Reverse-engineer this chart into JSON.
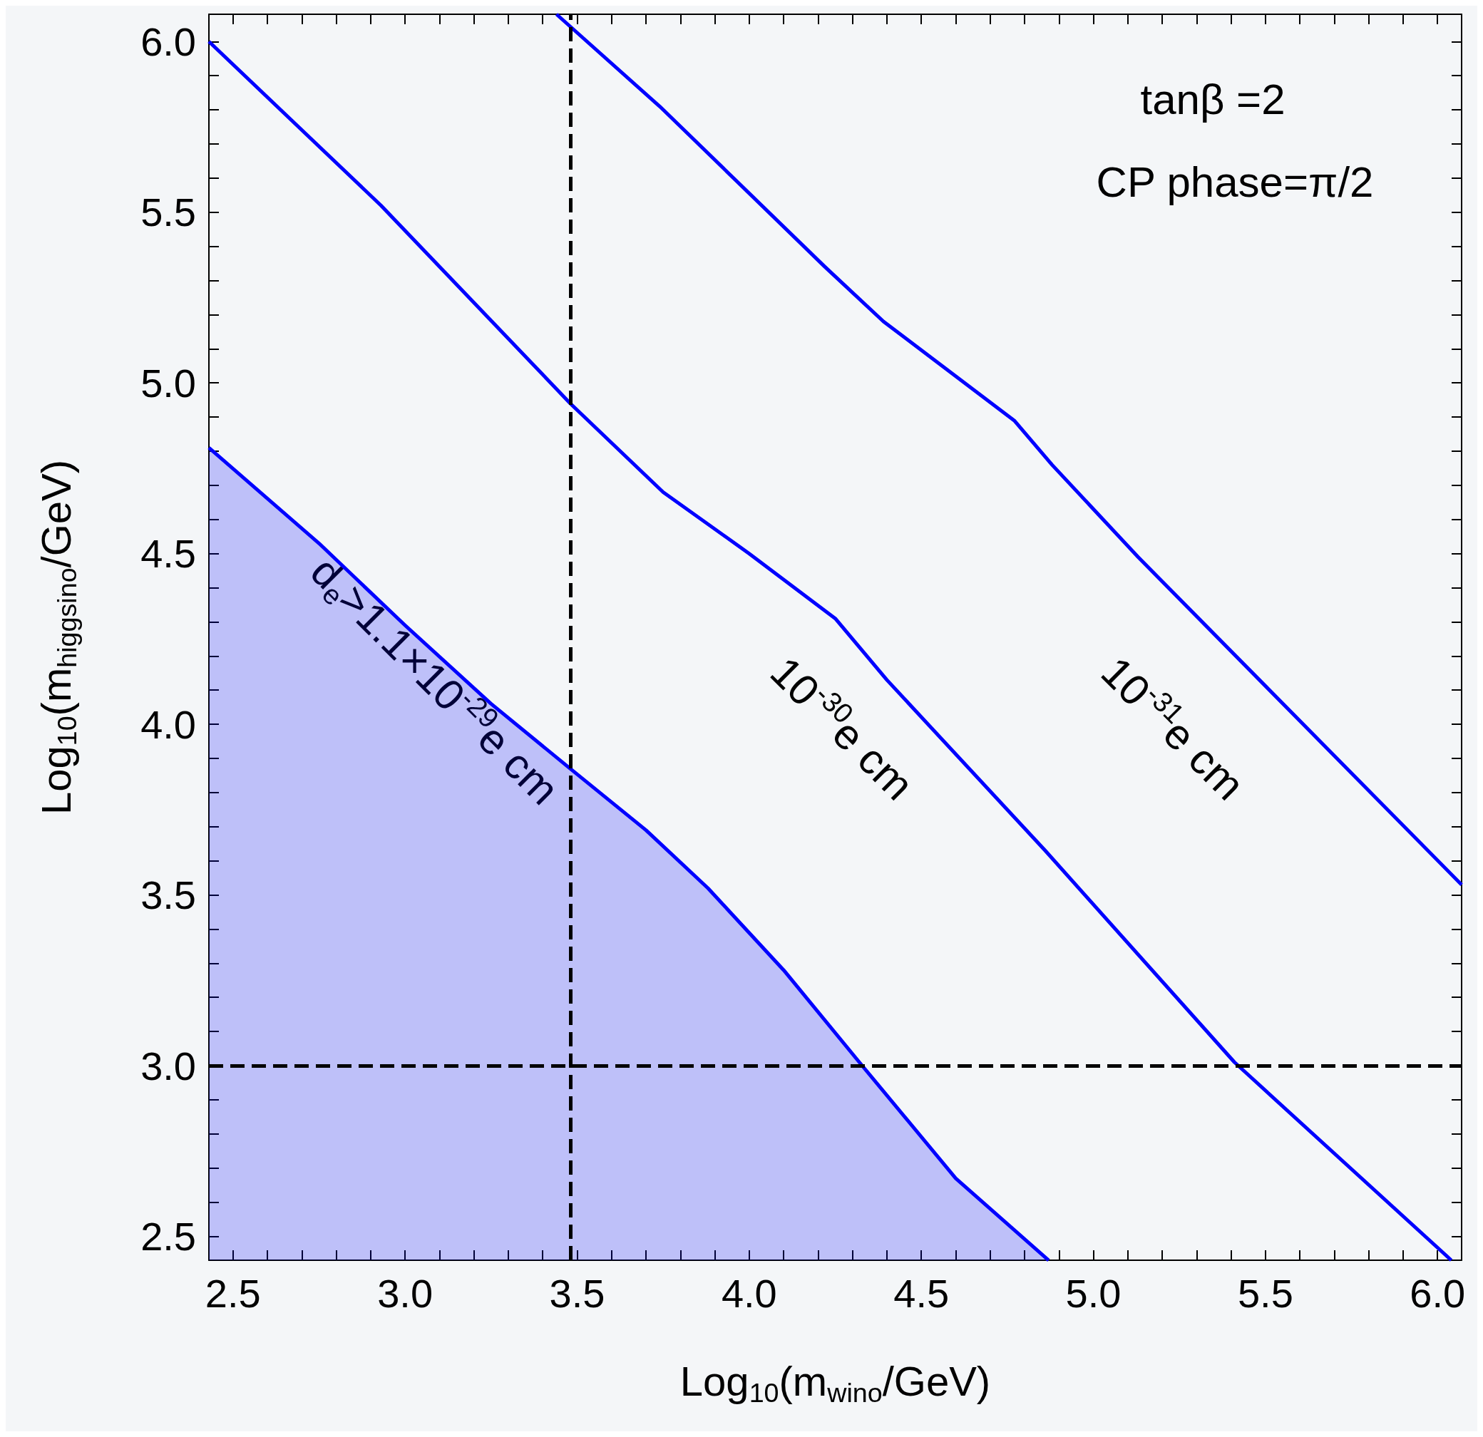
{
  "chart_data": {
    "type": "line",
    "xlabel": "Log$_{10}$(m$_{wino}$/GeV)",
    "ylabel": "Log$_{10}$(m$_{higgsino}$/GeV)",
    "xlim": [
      2.43,
      6.07
    ],
    "ylim": [
      2.43,
      6.08
    ],
    "xticks": [
      {
        "value": 2.5,
        "label": "2.5"
      },
      {
        "value": 2.6,
        "label": null
      },
      {
        "value": 2.7,
        "label": null
      },
      {
        "value": 2.8,
        "label": null
      },
      {
        "value": 2.9,
        "label": null
      },
      {
        "value": 3,
        "label": "3.0"
      },
      {
        "value": 3.1,
        "label": null
      },
      {
        "value": 3.2,
        "label": null
      },
      {
        "value": 3.3,
        "label": null
      },
      {
        "value": 3.4,
        "label": null
      },
      {
        "value": 3.5,
        "label": "3.5"
      },
      {
        "value": 3.6,
        "label": null
      },
      {
        "value": 3.7,
        "label": null
      },
      {
        "value": 3.8,
        "label": null
      },
      {
        "value": 3.9,
        "label": null
      },
      {
        "value": 4,
        "label": "4.0"
      },
      {
        "value": 4.1,
        "label": null
      },
      {
        "value": 4.2,
        "label": null
      },
      {
        "value": 4.3,
        "label": null
      },
      {
        "value": 4.4,
        "label": null
      },
      {
        "value": 4.5,
        "label": "4.5"
      },
      {
        "value": 4.6,
        "label": null
      },
      {
        "value": 4.7,
        "label": null
      },
      {
        "value": 4.8,
        "label": null
      },
      {
        "value": 4.9,
        "label": null
      },
      {
        "value": 5,
        "label": "5.0"
      },
      {
        "value": 5.1,
        "label": null
      },
      {
        "value": 5.2,
        "label": null
      },
      {
        "value": 5.3,
        "label": null
      },
      {
        "value": 5.4,
        "label": null
      },
      {
        "value": 5.5,
        "label": "5.5"
      },
      {
        "value": 5.6,
        "label": null
      },
      {
        "value": 5.7,
        "label": null
      },
      {
        "value": 5.8,
        "label": null
      },
      {
        "value": 5.9,
        "label": null
      },
      {
        "value": 6,
        "label": "6.0"
      }
    ],
    "yticks": [
      {
        "value": 2.5,
        "label": "2.5"
      },
      {
        "value": 2.6,
        "label": null
      },
      {
        "value": 2.7,
        "label": null
      },
      {
        "value": 2.8,
        "label": null
      },
      {
        "value": 2.9,
        "label": null
      },
      {
        "value": 3,
        "label": "3.0"
      },
      {
        "value": 3.1,
        "label": null
      },
      {
        "value": 3.2,
        "label": null
      },
      {
        "value": 3.3,
        "label": null
      },
      {
        "value": 3.4,
        "label": null
      },
      {
        "value": 3.5,
        "label": "3.5"
      },
      {
        "value": 3.6,
        "label": null
      },
      {
        "value": 3.7,
        "label": null
      },
      {
        "value": 3.8,
        "label": null
      },
      {
        "value": 3.9,
        "label": null
      },
      {
        "value": 4,
        "label": "4.0"
      },
      {
        "value": 4.1,
        "label": null
      },
      {
        "value": 4.2,
        "label": null
      },
      {
        "value": 4.3,
        "label": null
      },
      {
        "value": 4.4,
        "label": null
      },
      {
        "value": 4.5,
        "label": "4.5"
      },
      {
        "value": 4.6,
        "label": null
      },
      {
        "value": 4.7,
        "label": null
      },
      {
        "value": 4.8,
        "label": null
      },
      {
        "value": 4.9,
        "label": null
      },
      {
        "value": 5,
        "label": "5.0"
      },
      {
        "value": 5.1,
        "label": null
      },
      {
        "value": 5.2,
        "label": null
      },
      {
        "value": 5.3,
        "label": null
      },
      {
        "value": 5.4,
        "label": null
      },
      {
        "value": 5.5,
        "label": "5.5"
      },
      {
        "value": 5.6,
        "label": null
      },
      {
        "value": 5.7,
        "label": null
      },
      {
        "value": 5.8,
        "label": null
      },
      {
        "value": 5.9,
        "label": null
      },
      {
        "value": 6,
        "label": "6.0"
      }
    ],
    "series": [
      {
        "type": "area",
        "color": "#0000ff",
        "x": [
          2.43,
          2.75,
          3.0,
          3.25,
          3.48,
          3.7,
          3.88,
          4.1,
          4.32,
          4.6,
          4.87
        ],
        "values": [
          4.81,
          4.53,
          4.29,
          4.06,
          3.87,
          3.69,
          3.52,
          3.28,
          3.01,
          2.67,
          2.43
        ]
      },
      {
        "color": "#0000ff",
        "x": [
          2.43,
          2.93,
          3.48,
          3.75,
          4.0,
          4.25,
          4.4,
          4.86,
          5.41,
          6.04
        ],
        "values": [
          6.0,
          5.52,
          4.94,
          4.68,
          4.5,
          4.31,
          4.13,
          3.63,
          3.01,
          2.43
        ]
      },
      {
        "color": "#0000ff",
        "x": [
          3.44,
          3.74,
          4.22,
          4.39,
          4.77,
          4.88,
          5.13,
          6.07
        ],
        "values": [
          6.08,
          5.81,
          5.34,
          5.18,
          4.89,
          4.76,
          4.49,
          3.53
        ]
      }
    ],
    "ref_lines": [
      {
        "axis": "x",
        "value": 3.48,
        "color": "#000000",
        "line_style": "dashed"
      },
      {
        "axis": "y",
        "value": 3.0,
        "color": "#000000",
        "line_style": "dashed"
      }
    ],
    "annotations": [
      "tanβ =2",
      "CP phase=π/2",
      "d$_{e}$>1.1×10$^{-29}$e cm",
      "10$^{-30}$e cm",
      "10$^{-31}$e cm"
    ],
    "grid": false
  }
}
